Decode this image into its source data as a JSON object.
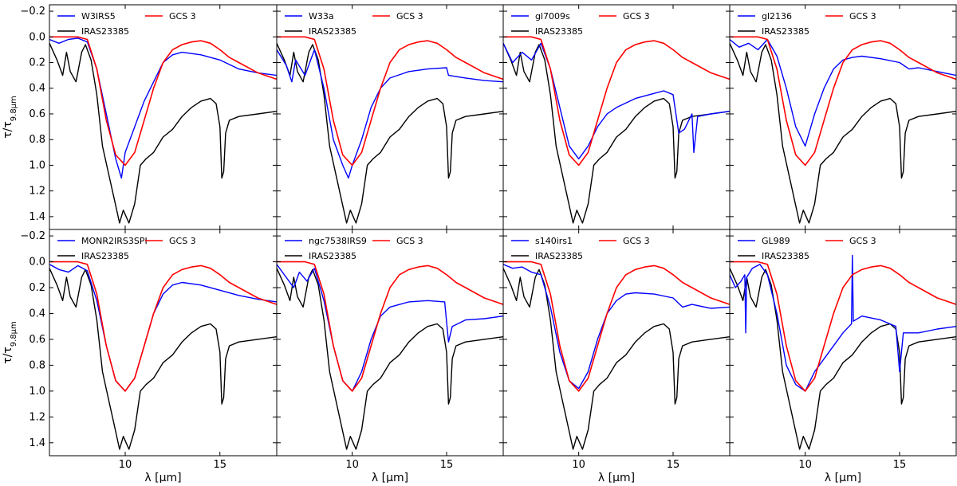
{
  "chart_data": {
    "type": "line",
    "layout": "2x4 grid, shared axes",
    "xlabel": "λ [μm]",
    "ylabel_main": "τ/τ",
    "ylabel_sub": "9.8μm",
    "xlim": [
      6,
      18
    ],
    "ylim_inverted": [
      1.5,
      -0.25
    ],
    "xticks": [
      10,
      15
    ],
    "yticks": [
      -0.2,
      0.0,
      0.2,
      0.4,
      0.6,
      0.8,
      1.0,
      1.2,
      1.4
    ],
    "ytick_labels": [
      "−0.2",
      "0.0",
      "0.2",
      "0.4",
      "0.6",
      "0.8",
      "1.0",
      "1.2",
      "1.4"
    ],
    "legend_position": "top-left",
    "colors": {
      "object": "#0000ff",
      "reference": "#000000",
      "model": "#ff0000"
    },
    "reference_series": {
      "name": "IRAS23385",
      "x": [
        6.0,
        6.4,
        6.7,
        6.9,
        7.1,
        7.4,
        7.7,
        7.9,
        8.2,
        8.5,
        8.8,
        9.1,
        9.4,
        9.7,
        9.9,
        10.2,
        10.5,
        10.8,
        11.1,
        11.5,
        12.0,
        12.5,
        13.0,
        13.5,
        14.0,
        14.5,
        14.8,
        15.0,
        15.1,
        15.2,
        15.3,
        15.5,
        16.0,
        17.0,
        18.0
      ],
      "y": [
        0.05,
        0.18,
        0.3,
        0.12,
        0.27,
        0.35,
        0.12,
        0.06,
        0.18,
        0.45,
        0.85,
        1.05,
        1.25,
        1.45,
        1.35,
        1.45,
        1.3,
        1.0,
        0.95,
        0.9,
        0.78,
        0.72,
        0.62,
        0.55,
        0.5,
        0.48,
        0.52,
        0.7,
        1.1,
        1.05,
        0.75,
        0.65,
        0.62,
        0.6,
        0.58
      ]
    },
    "model_series": {
      "name": "GCS 3",
      "x": [
        6.0,
        7.0,
        7.5,
        8.0,
        8.5,
        9.0,
        9.5,
        10.0,
        10.5,
        11.0,
        11.5,
        12.0,
        12.5,
        13.0,
        13.5,
        14.0,
        14.5,
        15.0,
        15.5,
        16.0,
        17.0,
        18.0
      ],
      "y": [
        0.0,
        0.0,
        0.0,
        0.02,
        0.25,
        0.65,
        0.92,
        1.0,
        0.9,
        0.65,
        0.4,
        0.2,
        0.1,
        0.06,
        0.04,
        0.03,
        0.05,
        0.1,
        0.16,
        0.2,
        0.28,
        0.33
      ]
    },
    "panels": [
      {
        "object": "W3IRS5",
        "model": "GCS 3",
        "reference": "IRAS23385",
        "x": [
          6.0,
          6.5,
          7.0,
          7.5,
          8.0,
          8.5,
          9.0,
          9.5,
          9.8,
          10.0,
          10.5,
          11.0,
          11.5,
          12.0,
          12.5,
          13.0,
          14.0,
          15.0,
          16.0,
          17.0,
          18.0
        ],
        "y": [
          0.02,
          0.05,
          0.02,
          0.01,
          0.04,
          0.25,
          0.6,
          0.95,
          1.1,
          0.9,
          0.7,
          0.5,
          0.35,
          0.2,
          0.14,
          0.12,
          0.14,
          0.18,
          0.25,
          0.28,
          0.3
        ]
      },
      {
        "object": "W33a",
        "model": "GCS 3",
        "reference": "IRAS23385",
        "x": [
          6.0,
          6.5,
          6.8,
          7.0,
          7.5,
          8.0,
          8.5,
          9.0,
          9.5,
          9.8,
          10.0,
          10.5,
          11.0,
          11.5,
          12.0,
          13.0,
          14.0,
          15.0,
          15.1,
          16.0,
          17.0,
          18.0
        ],
        "y": [
          0.1,
          0.22,
          0.35,
          0.18,
          0.3,
          0.1,
          0.4,
          0.8,
          1.0,
          1.1,
          1.0,
          0.8,
          0.55,
          0.4,
          0.32,
          0.27,
          0.25,
          0.24,
          0.3,
          0.32,
          0.34,
          0.35
        ]
      },
      {
        "object": "gl7009s",
        "model": "GCS 3",
        "reference": "IRAS23385",
        "x": [
          6.0,
          6.5,
          7.0,
          7.5,
          8.0,
          8.5,
          9.0,
          9.5,
          10.0,
          10.5,
          11.0,
          11.5,
          12.0,
          13.0,
          14.0,
          14.5,
          15.0,
          15.3,
          15.6,
          16.0,
          16.1,
          16.3,
          17.0,
          18.0
        ],
        "y": [
          0.05,
          0.2,
          0.12,
          0.18,
          0.05,
          0.25,
          0.55,
          0.85,
          0.95,
          0.85,
          0.7,
          0.6,
          0.55,
          0.48,
          0.44,
          0.42,
          0.45,
          0.75,
          0.72,
          0.6,
          0.9,
          0.62,
          0.6,
          0.58
        ]
      },
      {
        "object": "gl2136",
        "model": "GCS 3",
        "reference": "IRAS23385",
        "x": [
          6.0,
          6.5,
          7.0,
          7.5,
          8.0,
          8.5,
          9.0,
          9.5,
          10.0,
          10.5,
          11.0,
          11.5,
          12.0,
          12.5,
          13.0,
          14.0,
          15.0,
          15.5,
          16.0,
          17.0,
          18.0
        ],
        "y": [
          0.02,
          0.08,
          0.05,
          0.1,
          0.02,
          0.15,
          0.4,
          0.7,
          0.85,
          0.6,
          0.4,
          0.25,
          0.18,
          0.16,
          0.15,
          0.17,
          0.2,
          0.25,
          0.24,
          0.27,
          0.3
        ]
      },
      {
        "object": "MONR2IRS3SPI",
        "model": "GCS 3",
        "reference": "IRAS23385",
        "x": [
          6.0,
          6.5,
          7.0,
          7.5,
          8.0,
          8.5,
          9.0,
          9.5,
          10.0,
          10.5,
          11.0,
          11.5,
          12.0,
          12.5,
          13.0,
          14.0,
          15.0,
          16.0,
          17.0,
          18.0
        ],
        "y": [
          0.02,
          0.06,
          0.08,
          0.03,
          0.07,
          0.3,
          0.65,
          0.92,
          1.0,
          0.9,
          0.65,
          0.4,
          0.25,
          0.18,
          0.16,
          0.18,
          0.22,
          0.26,
          0.29,
          0.31
        ]
      },
      {
        "object": "ngc7538IRS9",
        "model": "GCS 3",
        "reference": "IRAS23385",
        "x": [
          6.0,
          6.5,
          6.9,
          7.2,
          7.6,
          8.0,
          8.5,
          9.0,
          9.5,
          10.0,
          10.5,
          11.0,
          11.5,
          12.0,
          13.0,
          14.0,
          14.9,
          15.1,
          15.3,
          16.0,
          17.0,
          18.0
        ],
        "y": [
          0.02,
          0.12,
          0.2,
          0.08,
          0.15,
          0.05,
          0.3,
          0.65,
          0.92,
          1.0,
          0.85,
          0.6,
          0.42,
          0.35,
          0.31,
          0.3,
          0.31,
          0.62,
          0.5,
          0.45,
          0.44,
          0.42
        ]
      },
      {
        "object": "s140irs1",
        "model": "GCS 3",
        "reference": "IRAS23385",
        "x": [
          6.0,
          6.5,
          7.0,
          7.5,
          8.0,
          8.5,
          9.0,
          9.5,
          10.0,
          10.5,
          11.0,
          11.5,
          12.0,
          12.5,
          13.0,
          14.0,
          15.0,
          15.5,
          16.0,
          17.0,
          18.0
        ],
        "y": [
          0.02,
          0.05,
          0.04,
          0.08,
          0.1,
          0.35,
          0.7,
          0.92,
          0.98,
          0.85,
          0.6,
          0.4,
          0.3,
          0.25,
          0.24,
          0.25,
          0.28,
          0.35,
          0.33,
          0.36,
          0.35
        ]
      },
      {
        "object": "GL989",
        "model": "GCS 3",
        "reference": "IRAS23385",
        "x": [
          6.0,
          6.3,
          6.6,
          6.8,
          6.85,
          6.9,
          7.2,
          7.6,
          8.0,
          8.5,
          9.0,
          9.5,
          10.0,
          10.5,
          11.0,
          11.5,
          12.0,
          12.45,
          12.5,
          12.55,
          13.0,
          14.0,
          14.8,
          15.0,
          15.2,
          16.0,
          17.0,
          18.0
        ],
        "y": [
          0.1,
          0.2,
          0.15,
          0.1,
          0.55,
          0.12,
          0.05,
          0.02,
          0.1,
          0.4,
          0.8,
          0.95,
          1.0,
          0.85,
          0.75,
          0.65,
          0.55,
          0.48,
          -0.05,
          0.46,
          0.42,
          0.45,
          0.5,
          0.85,
          0.55,
          0.55,
          0.52,
          0.5
        ]
      }
    ]
  }
}
